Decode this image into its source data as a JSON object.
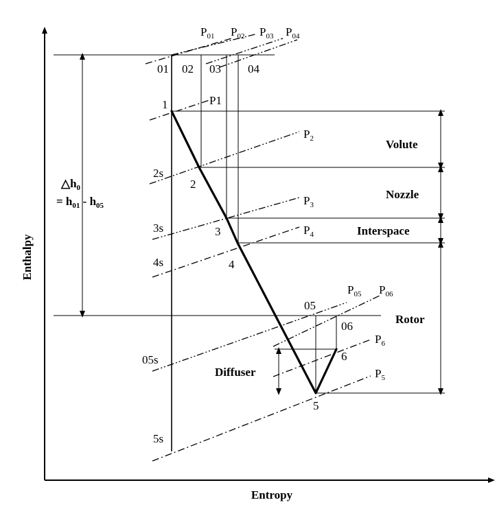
{
  "axes": {
    "x_label": "Entropy",
    "y_label": "Enthalpy"
  },
  "total_enthalpy_drop": {
    "line1_symbol": "△h",
    "line1_sub": "0",
    "line2_prefix": "= h",
    "line2_sub_a": "01",
    "line2_mid": " - h",
    "line2_sub_b": "05"
  },
  "stagnation_pressures": [
    {
      "base": "P",
      "sub": "01"
    },
    {
      "base": "P",
      "sub": "02"
    },
    {
      "base": "P",
      "sub": "03"
    },
    {
      "base": "P",
      "sub": "04"
    }
  ],
  "stagnation_states": [
    "01",
    "02",
    "03",
    "04"
  ],
  "static_pressures": {
    "p1": "P1",
    "p2": {
      "base": "P",
      "sub": "2"
    },
    "p3": {
      "base": "P",
      "sub": "3"
    },
    "p4": {
      "base": "P",
      "sub": "4"
    },
    "p05": {
      "base": "P",
      "sub": "05"
    },
    "p06": {
      "base": "P",
      "sub": "06"
    },
    "p6": {
      "base": "P",
      "sub": "6"
    },
    "p5": {
      "base": "P",
      "sub": "5"
    }
  },
  "state_points": {
    "s1": "1",
    "s2": "2",
    "s3": "3",
    "s4": "4",
    "s5": "5",
    "s6": "6",
    "s05": "05",
    "s06": "06"
  },
  "isentropic_points": {
    "s2s": "2s",
    "s3s": "3s",
    "s4s": "4s",
    "s05s": "05s",
    "s5s": "5s"
  },
  "components": {
    "volute": "Volute",
    "nozzle": "Nozzle",
    "interspace": "Interspace",
    "rotor": "Rotor",
    "diffuser": "Diffuser"
  }
}
